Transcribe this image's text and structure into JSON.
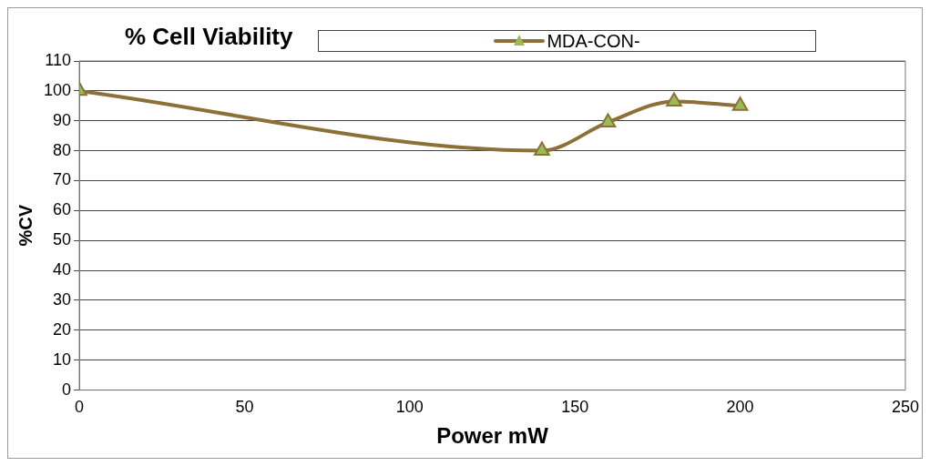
{
  "chart_data": {
    "type": "line",
    "title": "% Cell Viability",
    "xlabel": "Power mW",
    "ylabel": "%CV",
    "x": [
      0,
      140,
      160,
      180,
      200
    ],
    "series": [
      {
        "name": "MDA-CON-",
        "color": "#8c7038",
        "values": [
          100,
          80,
          89.5,
          96.5,
          95
        ]
      }
    ],
    "xlim": [
      0,
      250
    ],
    "xticks": [
      0,
      50,
      100,
      150,
      200,
      250
    ],
    "ylim": [
      0,
      110
    ],
    "yticks": [
      0,
      10,
      20,
      30,
      40,
      50,
      60,
      70,
      80,
      90,
      100,
      110
    ],
    "grid": "y",
    "legend": "top",
    "marker": "triangle",
    "line_style": "solid"
  }
}
